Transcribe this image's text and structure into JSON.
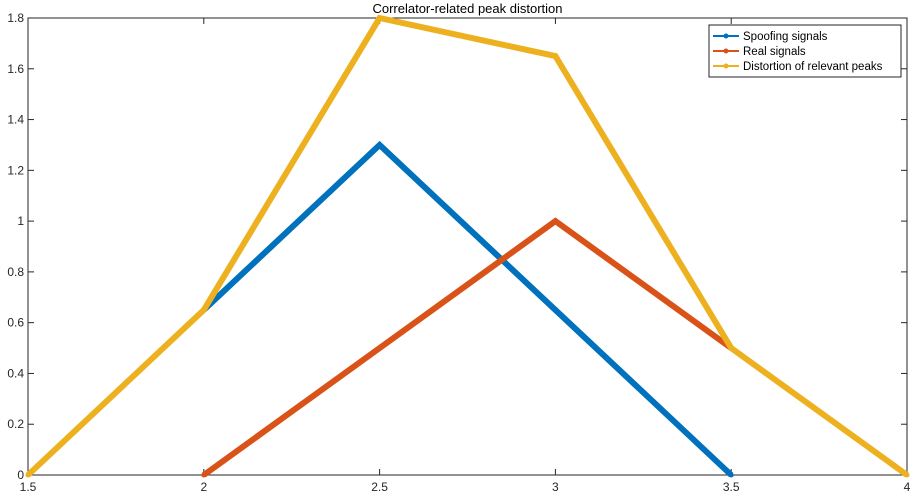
{
  "chart_data": {
    "type": "line",
    "title": "Correlator-related peak distortion",
    "xlabel": "",
    "ylabel": "",
    "xlim": [
      1.5,
      4
    ],
    "ylim": [
      0,
      1.8
    ],
    "xticks": [
      1.5,
      2,
      2.5,
      3,
      3.5,
      4
    ],
    "xtick_labels": [
      "1.5",
      "2",
      "2.5",
      "3",
      "3.5",
      "4"
    ],
    "yticks": [
      0,
      0.2,
      0.4,
      0.6,
      0.8,
      1,
      1.2,
      1.4,
      1.6,
      1.8
    ],
    "ytick_labels": [
      "0",
      "0.2",
      "0.4",
      "0.6",
      "0.8",
      "1",
      "1.2",
      "1.4",
      "1.6",
      "1.8"
    ],
    "grid": false,
    "legend_position": "top-right",
    "series": [
      {
        "name": "Spoofing signals",
        "color": "#0072BD",
        "x": [
          2,
          2.5,
          3.5
        ],
        "y": [
          0.65,
          1.3,
          0
        ]
      },
      {
        "name": "Real signals",
        "color": "#D95319",
        "x": [
          2,
          3,
          3.5
        ],
        "y": [
          0,
          1,
          0.5
        ]
      },
      {
        "name": "Distortion of relevant peaks",
        "color": "#EDB120",
        "x": [
          1.5,
          2,
          2.5,
          3,
          3.5,
          4
        ],
        "y": [
          0,
          0.65,
          1.8,
          1.65,
          0.5,
          0
        ]
      }
    ]
  }
}
